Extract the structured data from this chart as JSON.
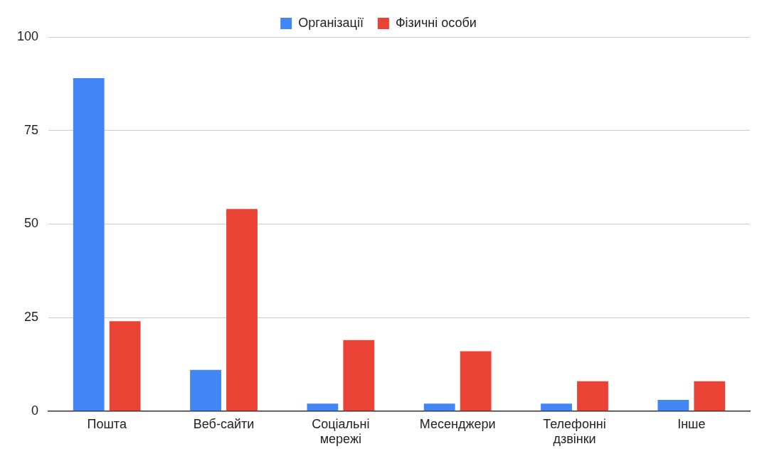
{
  "chart_data": {
    "type": "bar",
    "categories": [
      "Пошта",
      "Веб-сайти",
      "Соціальні мережі",
      "Месенджери",
      "Телефонні дзвінки",
      "Інше"
    ],
    "series": [
      {
        "name": "Організації",
        "color": "#4285f4",
        "values": [
          89,
          11,
          2,
          2,
          2,
          3
        ]
      },
      {
        "name": "Фізичні особи",
        "color": "#ea4335",
        "values": [
          24,
          54,
          19,
          16,
          8,
          8
        ]
      }
    ],
    "ylim": [
      0,
      100
    ],
    "yticks": [
      0,
      25,
      50,
      75,
      100
    ],
    "grid": "y",
    "legend": "top"
  }
}
